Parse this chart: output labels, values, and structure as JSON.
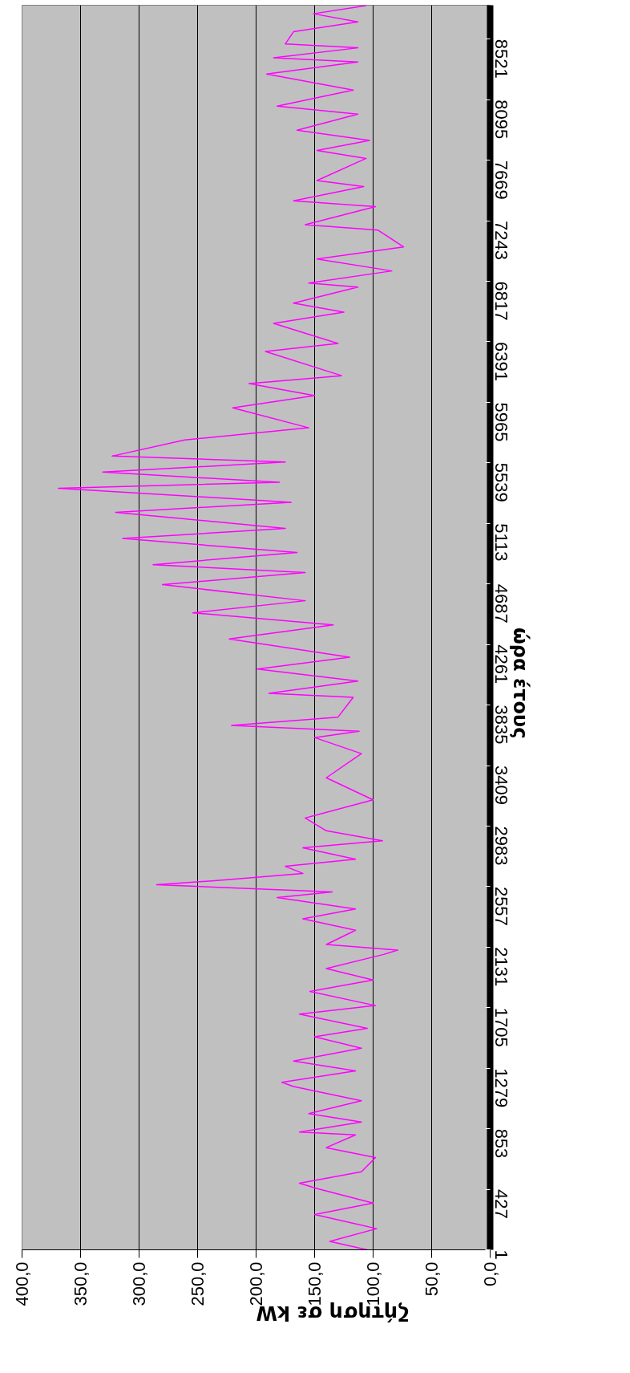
{
  "chart_data": {
    "type": "line",
    "xlabel": "ζήτηση σε kW",
    "ylabel": "ώρα έτους",
    "x": [
      105,
      137,
      97,
      150,
      100,
      147,
      163,
      110,
      98,
      140,
      115,
      163,
      110,
      155,
      110,
      168,
      178,
      115,
      168,
      110,
      150,
      105,
      163,
      98,
      154,
      100,
      140,
      91,
      79,
      140,
      115,
      160,
      115,
      182,
      135,
      285,
      233,
      160,
      175,
      115,
      160,
      92,
      140,
      158,
      100,
      140,
      110,
      150,
      112,
      221,
      130,
      117,
      189,
      113,
      199,
      120,
      223,
      134,
      254,
      158,
      280,
      158,
      288,
      165,
      314,
      175,
      320,
      170,
      369,
      180,
      331,
      175,
      323,
      261,
      155,
      220,
      150,
      206,
      127,
      192,
      130,
      185,
      125,
      168,
      113,
      155,
      84,
      148,
      74,
      96,
      158,
      98,
      168,
      108,
      148,
      106,
      148,
      103,
      165,
      113,
      182,
      117,
      191,
      113,
      185,
      113,
      175,
      168,
      113,
      151,
      106
    ],
    "series": [
      {
        "color": "#ff00ff",
        "values": [
          1,
          60,
          150,
          250,
          330,
          430,
          470,
          550,
          650,
          720,
          810,
          830,
          900,
          960,
          1050,
          1150,
          1180,
          1260,
          1330,
          1420,
          1500,
          1560,
          1660,
          1720,
          1820,
          1900,
          1980,
          2080,
          2110,
          2150,
          2250,
          2330,
          2400,
          2480,
          2520,
          2570,
          2600,
          2650,
          2700,
          2750,
          2830,
          2880,
          2950,
          3040,
          3168,
          3323,
          3493,
          3606,
          3650,
          3691,
          3750,
          3889,
          3918,
          4003,
          4088,
          4172,
          4300,
          4399,
          4484,
          4569,
          4682,
          4767,
          4823,
          4908,
          5007,
          5078,
          5191,
          5262,
          5361,
          5403,
          5474,
          5545,
          5587,
          5700,
          5786,
          5927,
          6012,
          6097,
          6153,
          6323,
          6380,
          6521,
          6600,
          6663,
          6776,
          6804,
          6890,
          6974,
          7059,
          7178,
          7215,
          7342,
          7384,
          7484,
          7526,
          7682,
          7738,
          7809,
          7880,
          7993,
          8050,
          8163,
          8276,
          8361,
          8390,
          8460,
          8488,
          8573,
          8643,
          8700,
          8757
        ]
      }
    ],
    "ylim": [
      1,
      8760
    ],
    "yticks": [
      1,
      427,
      853,
      1279,
      1705,
      2131,
      2557,
      2983,
      3409,
      3835,
      4261,
      4687,
      5113,
      5539,
      5965,
      6391,
      6817,
      7243,
      7669,
      8095,
      8521
    ],
    "xlim": [
      400,
      0
    ],
    "xticks": [
      {
        "value": 0,
        "label": "0,0"
      },
      {
        "value": 50,
        "label": "50,0"
      },
      {
        "value": 100,
        "label": "100,0"
      },
      {
        "value": 150,
        "label": "150,0"
      },
      {
        "value": 200,
        "label": "200,0"
      },
      {
        "value": 250,
        "label": "250,0"
      },
      {
        "value": 300,
        "label": "300,0"
      },
      {
        "value": 350,
        "label": "350,0"
      },
      {
        "value": 400,
        "label": "400,0"
      }
    ],
    "grid": "x"
  }
}
